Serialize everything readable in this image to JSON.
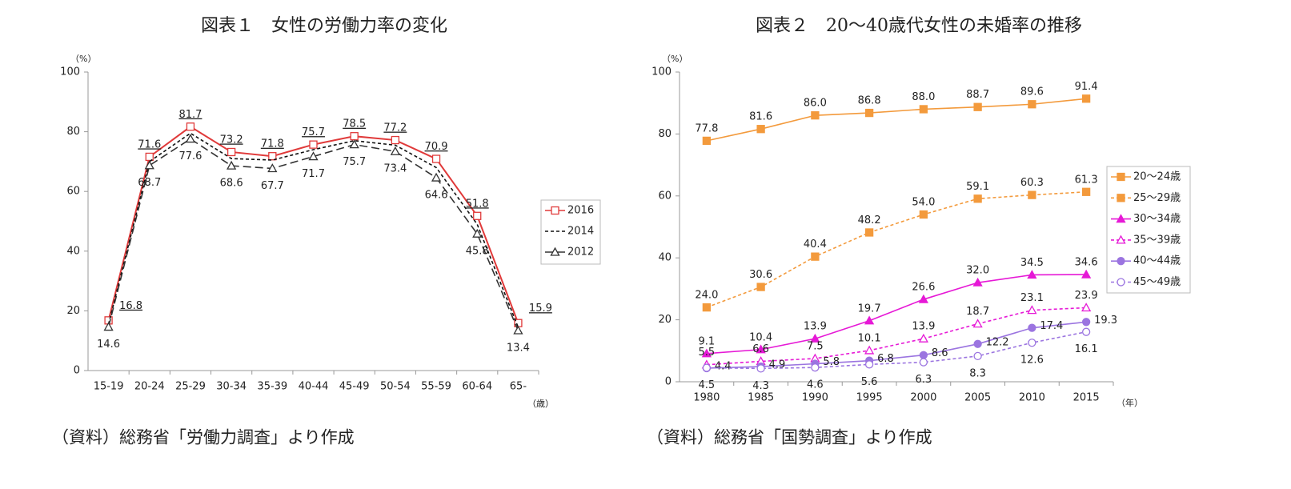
{
  "chart_data": [
    {
      "type": "line",
      "title": "図表１　女性の労働力率の変化",
      "y_unit": "（%）",
      "x_unit": "（歳）",
      "source": "（資料）総務省「労働力調査」より作成",
      "categories": [
        "15-19",
        "20-24",
        "25-29",
        "30-34",
        "35-39",
        "40-44",
        "45-49",
        "50-54",
        "55-59",
        "60-64",
        "65-"
      ],
      "ylim": [
        0,
        100
      ],
      "yticks": [
        0,
        20,
        40,
        60,
        80,
        100
      ],
      "series": [
        {
          "name": "2016",
          "color": "#e03a3a",
          "dash": "solid",
          "marker": "square-open",
          "data_labels": "above",
          "label_underline": true,
          "values": [
            16.8,
            71.6,
            81.7,
            73.2,
            71.8,
            75.7,
            78.5,
            77.2,
            70.9,
            51.8,
            15.9
          ]
        },
        {
          "name": "2014",
          "color": "#111111",
          "dash": "short",
          "marker": "none",
          "data_labels": "none",
          "values": [
            15.5,
            70.0,
            79.5,
            71.0,
            70.5,
            74.0,
            77.0,
            75.5,
            68.0,
            49.0,
            14.5
          ]
        },
        {
          "name": "2012",
          "color": "#333333",
          "dash": "long",
          "marker": "triangle-open",
          "data_labels": "below",
          "values": [
            14.6,
            68.7,
            77.6,
            68.6,
            67.7,
            71.7,
            75.7,
            73.4,
            64.6,
            45.8,
            13.4
          ]
        }
      ]
    },
    {
      "type": "line",
      "title": "図表２　20〜40歳代女性の未婚率の推移",
      "y_unit": "（%）",
      "x_unit": "（年）",
      "source": "（資料）総務省「国勢調査」より作成",
      "categories": [
        "1980",
        "1985",
        "1990",
        "1995",
        "2000",
        "2005",
        "2010",
        "2015"
      ],
      "ylim": [
        0,
        100
      ],
      "yticks": [
        0,
        20,
        40,
        60,
        80,
        100
      ],
      "series": [
        {
          "name": "20〜24歳",
          "color": "#f39a3c",
          "dash": "solid",
          "marker": "square",
          "data_labels": "above",
          "values": [
            77.8,
            81.6,
            86.0,
            86.8,
            88.0,
            88.7,
            89.6,
            91.4
          ],
          "value_labels": [
            "77.8",
            "81.6",
            "86.0",
            "86.8",
            "88.0",
            "88.7",
            "89.6",
            "91.4"
          ]
        },
        {
          "name": "25〜29歳",
          "color": "#f39a3c",
          "dash": "short",
          "marker": "square",
          "data_labels": "above",
          "values": [
            24.0,
            30.6,
            40.4,
            48.2,
            54.0,
            59.1,
            60.3,
            61.3
          ],
          "value_labels": [
            "24.0",
            "30.6",
            "40.4",
            "48.2",
            "54.0",
            "59.1",
            "60.3",
            "61.3"
          ]
        },
        {
          "name": "30〜34歳",
          "color": "#e619d6",
          "dash": "solid",
          "marker": "triangle",
          "data_labels": "above",
          "values": [
            9.1,
            10.4,
            13.9,
            19.7,
            26.6,
            32.0,
            34.5,
            34.6
          ],
          "value_labels": [
            "9.1",
            "10.4",
            "13.9",
            "19.7",
            "26.6",
            "32.0",
            "34.5",
            "34.6"
          ]
        },
        {
          "name": "35〜39歳",
          "color": "#e619d6",
          "dash": "short",
          "marker": "triangle-open",
          "data_labels": "above",
          "values": [
            5.5,
            6.6,
            7.5,
            10.1,
            13.9,
            18.7,
            23.1,
            23.9
          ],
          "value_labels": [
            "5.5",
            "6.6",
            "7.5",
            "10.1",
            "13.9",
            "18.7",
            "23.1",
            "23.9"
          ]
        },
        {
          "name": "40〜44歳",
          "color": "#9b74e0",
          "dash": "solid",
          "marker": "circle",
          "data_labels": "right",
          "values": [
            4.4,
            4.9,
            5.8,
            6.8,
            8.6,
            12.2,
            17.4,
            19.3
          ],
          "value_labels": [
            "4.4",
            "4.9",
            "5.8",
            "6.8",
            "8.6",
            "12.2",
            "17.4",
            "19.3"
          ]
        },
        {
          "name": "45〜49歳",
          "color": "#9b74e0",
          "dash": "short",
          "marker": "circle-open",
          "data_labels": "below",
          "values": [
            4.5,
            4.3,
            4.6,
            5.6,
            6.3,
            8.3,
            12.6,
            16.1
          ],
          "value_labels": [
            "4.5",
            "4.3",
            "4.6",
            "5.6",
            "6.3",
            "8.3",
            "12.6",
            "16.1"
          ]
        }
      ]
    }
  ]
}
